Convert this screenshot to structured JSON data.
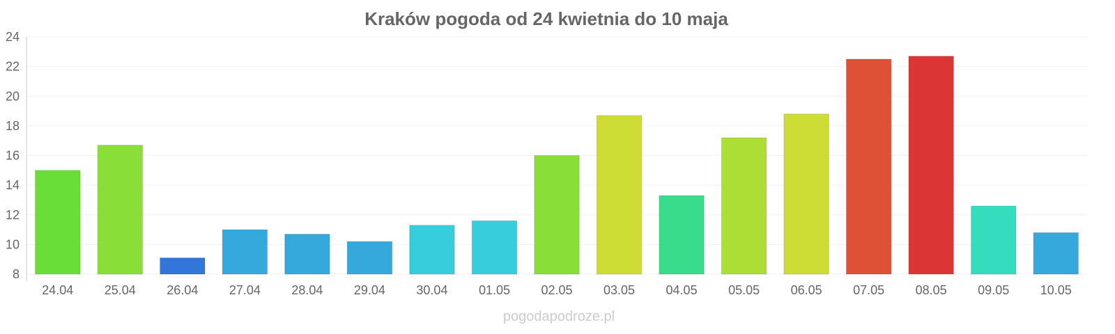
{
  "chart_data": {
    "type": "bar",
    "title": "Kraków pogoda od 24 kwietnia do 10 maja",
    "xlabel": "",
    "ylabel": "",
    "ylim": [
      8,
      24
    ],
    "yticks": [
      8,
      10,
      12,
      14,
      16,
      18,
      20,
      22,
      24
    ],
    "grid": true,
    "categories": [
      "24.04",
      "25.04",
      "26.04",
      "27.04",
      "28.04",
      "29.04",
      "30.04",
      "01.05",
      "02.05",
      "03.05",
      "04.05",
      "05.05",
      "06.05",
      "07.05",
      "08.05",
      "09.05",
      "10.05"
    ],
    "values": [
      15.0,
      16.7,
      9.1,
      11.0,
      10.7,
      10.2,
      11.3,
      11.6,
      16.0,
      18.7,
      13.3,
      17.2,
      18.8,
      22.5,
      22.7,
      12.6,
      10.8
    ],
    "colors": [
      "#6ade38",
      "#8ade38",
      "#3276da",
      "#36a9dc",
      "#36a9dc",
      "#36a9dc",
      "#36cedc",
      "#36cedc",
      "#8ade38",
      "#cddd35",
      "#38dc8a",
      "#acde35",
      "#cddd35",
      "#de5136",
      "#dc3535",
      "#36dcbe",
      "#36a9dc"
    ]
  },
  "watermark": "pogodapodroze.pl"
}
